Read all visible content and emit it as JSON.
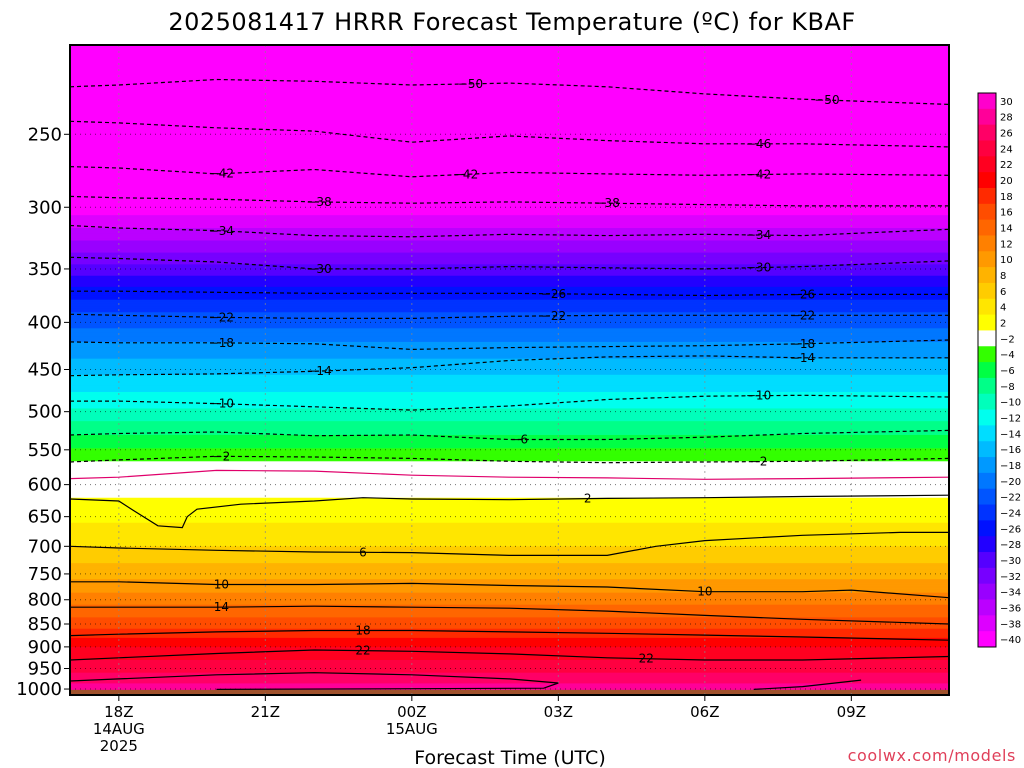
{
  "chart_data": {
    "type": "heatmap",
    "title": "2025081417 HRRR Forecast Temperature (ºC) for KBAF",
    "xlabel": "Forecast Time (UTC)",
    "ylabel": "",
    "credit": "coolwx.com/models",
    "x_range_hours": [
      -1,
      17
    ],
    "x_ticks": [
      {
        "hour": 0,
        "lines": [
          "18Z",
          "14AUG",
          "2025"
        ]
      },
      {
        "hour": 3,
        "lines": [
          "21Z"
        ]
      },
      {
        "hour": 6,
        "lines": [
          "00Z",
          "15AUG"
        ]
      },
      {
        "hour": 9,
        "lines": [
          "03Z"
        ]
      },
      {
        "hour": 12,
        "lines": [
          "06Z"
        ]
      },
      {
        "hour": 15,
        "lines": [
          "09Z"
        ]
      }
    ],
    "y_axis": "pressure (hPa), log scale, inverted",
    "y_range": [
      200,
      1015
    ],
    "y_ticks": [
      250,
      300,
      350,
      400,
      450,
      500,
      550,
      600,
      650,
      700,
      750,
      800,
      850,
      900,
      950,
      1000
    ],
    "surface_pressure": 1002,
    "colorbar": {
      "ticks": [
        30,
        28,
        26,
        24,
        22,
        20,
        18,
        16,
        14,
        12,
        10,
        8,
        6,
        4,
        2,
        -2,
        -4,
        -6,
        -8,
        -10,
        -12,
        -14,
        -16,
        -18,
        -20,
        -22,
        -24,
        -26,
        -28,
        -30,
        -32,
        -34,
        -36,
        -38,
        -40
      ],
      "colors": [
        "#ff00cc",
        "#ff0099",
        "#ff0066",
        "#ff0040",
        "#ff0020",
        "#ff0000",
        "#ff2a00",
        "#ff4d00",
        "#ff6600",
        "#ff8000",
        "#ff9900",
        "#ffb300",
        "#ffcc00",
        "#ffe600",
        "#ffff00",
        "#ffffff",
        "#33ff00",
        "#00ff44",
        "#00ff88",
        "#00ffbb",
        "#00ffee",
        "#00ddff",
        "#00bbff",
        "#0099ff",
        "#0077ff",
        "#0055ff",
        "#0033ff",
        "#0011ff",
        "#2200ff",
        "#5500ff",
        "#7700ff",
        "#9900ff",
        "#bb00ff",
        "#dd00ff",
        "#ff00ff"
      ]
    },
    "temperature_profile": [
      {
        "p": 200,
        "t": -55
      },
      {
        "p": 230,
        "t": -50
      },
      {
        "p": 260,
        "t": -46
      },
      {
        "p": 280,
        "t": -42
      },
      {
        "p": 305,
        "t": -38
      },
      {
        "p": 325,
        "t": -34
      },
      {
        "p": 345,
        "t": -30
      },
      {
        "p": 365,
        "t": -26
      },
      {
        "p": 390,
        "t": -22
      },
      {
        "p": 420,
        "t": -18
      },
      {
        "p": 455,
        "t": -14
      },
      {
        "p": 495,
        "t": -10
      },
      {
        "p": 530,
        "t": -6
      },
      {
        "p": 565,
        "t": -2
      },
      {
        "p": 600,
        "t": 1
      },
      {
        "p": 700,
        "t": 6
      },
      {
        "p": 760,
        "t": 10
      },
      {
        "p": 810,
        "t": 14
      },
      {
        "p": 860,
        "t": 18
      },
      {
        "p": 900,
        "t": 22
      },
      {
        "p": 960,
        "t": 26
      },
      {
        "p": 1000,
        "t": 29
      }
    ],
    "contours": [
      {
        "value": -50,
        "style": "dashed",
        "points": [
          [
            -1,
            222
          ],
          [
            0,
            221
          ],
          [
            2,
            218
          ],
          [
            4,
            219
          ],
          [
            6,
            221
          ],
          [
            8,
            220
          ],
          [
            10,
            222
          ],
          [
            12,
            226
          ],
          [
            14,
            229
          ],
          [
            17,
            232
          ]
        ],
        "labels": [
          7.2,
          14.5
        ]
      },
      {
        "value": -46,
        "style": "dashed",
        "points": [
          [
            -1,
            242
          ],
          [
            0,
            243
          ],
          [
            2,
            246
          ],
          [
            4,
            248
          ],
          [
            6,
            255
          ],
          [
            8,
            251
          ],
          [
            10,
            254
          ],
          [
            12,
            256
          ],
          [
            14,
            256
          ],
          [
            17,
            258
          ]
        ],
        "labels": [
          13.1
        ]
      },
      {
        "value": -42,
        "style": "dashed",
        "points": [
          [
            -1,
            271
          ],
          [
            0,
            272
          ],
          [
            2,
            276
          ],
          [
            4,
            273
          ],
          [
            6,
            278
          ],
          [
            8,
            275
          ],
          [
            10,
            276
          ],
          [
            12,
            277
          ],
          [
            14,
            276
          ],
          [
            17,
            277
          ]
        ],
        "labels": [
          2.1,
          7.1,
          13.1
        ]
      },
      {
        "value": -38,
        "style": "dashed",
        "points": [
          [
            -1,
            292
          ],
          [
            0,
            293
          ],
          [
            2,
            294
          ],
          [
            4,
            296
          ],
          [
            6,
            297
          ],
          [
            8,
            296
          ],
          [
            10,
            297
          ],
          [
            12,
            298
          ],
          [
            14,
            299
          ],
          [
            17,
            299
          ]
        ],
        "labels": [
          4.1,
          10.0
        ]
      },
      {
        "value": -34,
        "style": "dashed",
        "points": [
          [
            -1,
            314
          ],
          [
            0,
            316
          ],
          [
            2,
            318
          ],
          [
            4,
            322
          ],
          [
            6,
            323
          ],
          [
            8,
            321
          ],
          [
            10,
            322
          ],
          [
            12,
            321
          ],
          [
            14,
            322
          ],
          [
            17,
            317
          ]
        ],
        "labels": [
          2.1,
          13.1
        ]
      },
      {
        "value": -30,
        "style": "dashed",
        "points": [
          [
            -1,
            340
          ],
          [
            0,
            341
          ],
          [
            2,
            344
          ],
          [
            4,
            350
          ],
          [
            6,
            350
          ],
          [
            8,
            348
          ],
          [
            10,
            349
          ],
          [
            12,
            350
          ],
          [
            14,
            348
          ],
          [
            17,
            343
          ]
        ],
        "labels": [
          4.1,
          13.1
        ]
      },
      {
        "value": -26,
        "style": "dashed",
        "points": [
          [
            -1,
            370
          ],
          [
            0,
            370
          ],
          [
            2,
            371
          ],
          [
            4,
            372
          ],
          [
            6,
            372
          ],
          [
            8,
            372
          ],
          [
            10,
            373
          ],
          [
            12,
            374
          ],
          [
            14,
            373
          ],
          [
            17,
            373
          ]
        ],
        "labels": [
          8.9,
          14.0
        ]
      },
      {
        "value": -22,
        "style": "dashed",
        "points": [
          [
            -1,
            392
          ],
          [
            0,
            393
          ],
          [
            2,
            395
          ],
          [
            4,
            396
          ],
          [
            6,
            396
          ],
          [
            8,
            394
          ],
          [
            10,
            393
          ],
          [
            12,
            393
          ],
          [
            14,
            393
          ],
          [
            17,
            393
          ]
        ],
        "labels": [
          2.1,
          8.9,
          14.0
        ]
      },
      {
        "value": -18,
        "style": "dashed",
        "points": [
          [
            -1,
            420
          ],
          [
            0,
            421
          ],
          [
            2,
            421
          ],
          [
            4,
            422
          ],
          [
            6,
            428
          ],
          [
            8,
            426
          ],
          [
            10,
            425
          ],
          [
            12,
            424
          ],
          [
            14,
            422
          ],
          [
            17,
            418
          ]
        ],
        "labels": [
          2.1,
          14.0
        ]
      },
      {
        "value": -14,
        "style": "dashed",
        "points": [
          [
            -1,
            457
          ],
          [
            0,
            456
          ],
          [
            2,
            455
          ],
          [
            4,
            452
          ],
          [
            6,
            448
          ],
          [
            8,
            440
          ],
          [
            10,
            436
          ],
          [
            12,
            435
          ],
          [
            14,
            437
          ],
          [
            17,
            437
          ]
        ],
        "labels": [
          4.1,
          14.0
        ]
      },
      {
        "value": -10,
        "style": "dashed",
        "points": [
          [
            -1,
            487
          ],
          [
            0,
            487
          ],
          [
            2,
            490
          ],
          [
            4,
            494
          ],
          [
            6,
            498
          ],
          [
            8,
            493
          ],
          [
            10,
            485
          ],
          [
            12,
            481
          ],
          [
            14,
            480
          ],
          [
            17,
            482
          ]
        ],
        "labels": [
          2.1,
          13.1
        ]
      },
      {
        "value": -6,
        "style": "dashed",
        "points": [
          [
            -1,
            530
          ],
          [
            0,
            528
          ],
          [
            2,
            526
          ],
          [
            4,
            531
          ],
          [
            6,
            530
          ],
          [
            8,
            536
          ],
          [
            10,
            536
          ],
          [
            12,
            533
          ],
          [
            14,
            528
          ],
          [
            17,
            524
          ]
        ],
        "labels": [
          8.2
        ]
      },
      {
        "value": -2,
        "style": "dashed",
        "points": [
          [
            -1,
            567
          ],
          [
            0,
            564
          ],
          [
            2,
            559
          ],
          [
            4,
            560
          ],
          [
            6,
            562
          ],
          [
            8,
            566
          ],
          [
            10,
            568
          ],
          [
            12,
            567
          ],
          [
            14,
            566
          ],
          [
            17,
            562
          ]
        ],
        "labels": [
          2.1,
          13.1
        ]
      },
      {
        "value": 0,
        "style": "magenta",
        "points": [
          [
            -1,
            591
          ],
          [
            0,
            589
          ],
          [
            2,
            579
          ],
          [
            4,
            580
          ],
          [
            6,
            586
          ],
          [
            8,
            589
          ],
          [
            10,
            590
          ],
          [
            12,
            592
          ],
          [
            14,
            591
          ],
          [
            17,
            589
          ]
        ],
        "labels": []
      },
      {
        "value": 2,
        "style": "solid",
        "points": [
          [
            -1,
            622
          ],
          [
            0,
            625
          ],
          [
            0.3,
            640
          ],
          [
            0.8,
            665
          ],
          [
            1.3,
            668
          ],
          [
            1.4,
            650
          ],
          [
            1.6,
            638
          ],
          [
            2.5,
            630
          ],
          [
            4,
            625
          ],
          [
            5,
            620
          ],
          [
            6,
            622
          ],
          [
            8,
            623
          ],
          [
            10,
            621
          ],
          [
            12,
            620
          ],
          [
            14,
            618
          ],
          [
            17,
            616
          ]
        ],
        "labels": [
          9.6
        ]
      },
      {
        "value": 6,
        "style": "solid",
        "points": [
          [
            -1,
            700
          ],
          [
            0,
            703
          ],
          [
            2,
            707
          ],
          [
            4,
            710
          ],
          [
            6,
            711
          ],
          [
            8,
            716
          ],
          [
            10,
            716
          ],
          [
            11,
            700
          ],
          [
            12,
            690
          ],
          [
            14,
            681
          ],
          [
            16,
            676
          ],
          [
            17,
            676
          ]
        ],
        "labels": [
          5.0
        ]
      },
      {
        "value": 10,
        "style": "solid",
        "points": [
          [
            -1,
            765
          ],
          [
            0,
            765
          ],
          [
            2,
            770
          ],
          [
            4,
            770
          ],
          [
            6,
            768
          ],
          [
            8,
            772
          ],
          [
            10,
            775
          ],
          [
            12,
            784
          ],
          [
            14,
            784
          ],
          [
            15,
            781
          ],
          [
            17,
            796
          ]
        ],
        "labels": [
          2.1,
          12.0
        ]
      },
      {
        "value": 14,
        "style": "solid",
        "points": [
          [
            -1,
            815
          ],
          [
            0,
            815
          ],
          [
            2,
            815
          ],
          [
            4,
            813
          ],
          [
            6,
            815
          ],
          [
            8,
            817
          ],
          [
            10,
            823
          ],
          [
            12,
            832
          ],
          [
            14,
            840
          ],
          [
            17,
            850
          ]
        ],
        "labels": [
          2.1
        ]
      },
      {
        "value": 18,
        "style": "solid",
        "points": [
          [
            -1,
            875
          ],
          [
            0,
            872
          ],
          [
            2,
            867
          ],
          [
            4,
            864
          ],
          [
            6,
            864
          ],
          [
            8,
            867
          ],
          [
            10,
            870
          ],
          [
            12,
            874
          ],
          [
            14,
            878
          ],
          [
            17,
            885
          ]
        ],
        "labels": [
          5.0
        ]
      },
      {
        "value": 22,
        "style": "solid",
        "points": [
          [
            -1,
            930
          ],
          [
            0,
            925
          ],
          [
            2,
            915
          ],
          [
            4,
            907
          ],
          [
            6,
            910
          ],
          [
            8,
            916
          ],
          [
            10,
            925
          ],
          [
            12,
            930
          ],
          [
            14,
            930
          ],
          [
            17,
            922
          ]
        ],
        "labels": [
          5.0,
          10.8
        ]
      },
      {
        "value": 26,
        "style": "solid",
        "points": [
          [
            -1,
            980
          ],
          [
            0,
            975
          ],
          [
            2,
            965
          ],
          [
            4,
            960
          ],
          [
            6,
            965
          ],
          [
            8,
            975
          ],
          [
            9,
            985
          ],
          [
            8.7,
            998
          ],
          [
            2,
            1001
          ]
        ],
        "labels": []
      },
      {
        "value": 26,
        "style": "solid",
        "points": [
          [
            13,
            1001
          ],
          [
            14,
            994
          ],
          [
            15.2,
            978
          ]
        ],
        "labels": []
      }
    ]
  }
}
